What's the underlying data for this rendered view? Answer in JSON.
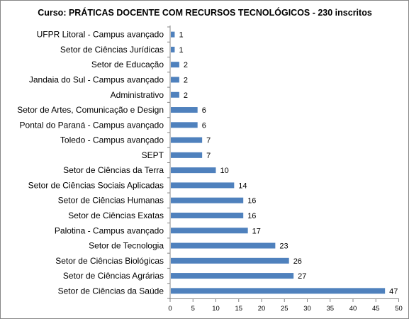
{
  "chart_data": {
    "type": "bar",
    "orientation": "horizontal",
    "title": "Curso: PRÁTICAS DOCENTE COM RECURSOS TECNOLÓGICOS - 230 inscritos",
    "categories": [
      "UFPR Litoral - Campus avançado",
      "Setor de Ciências Jurídicas",
      "Setor de Educação",
      "Jandaia do Sul - Campus avançado",
      "Administrativo",
      "Setor de Artes, Comunicação e Design",
      "Pontal do Paraná - Campus avançado",
      "Toledo - Campus avançado",
      "SEPT",
      "Setor de Ciências da Terra",
      "Setor de Ciências Sociais Aplicadas",
      "Setor de Ciências Humanas",
      "Setor de Ciências Exatas",
      "Palotina - Campus avançado",
      "Setor de Tecnologia",
      "Setor de Ciências Biológicas",
      "Setor de Ciências Agrárias",
      "Setor de Ciências da Saúde"
    ],
    "values": [
      1,
      1,
      2,
      2,
      2,
      6,
      6,
      7,
      7,
      10,
      14,
      16,
      16,
      17,
      23,
      26,
      27,
      47
    ],
    "xlim": [
      0,
      50
    ],
    "xticks": [
      "0",
      "5",
      "10",
      "15",
      "20",
      "25",
      "30",
      "35",
      "40",
      "45",
      "50"
    ],
    "grid": false,
    "legend": "none",
    "bar_color": "#4F81BD"
  }
}
